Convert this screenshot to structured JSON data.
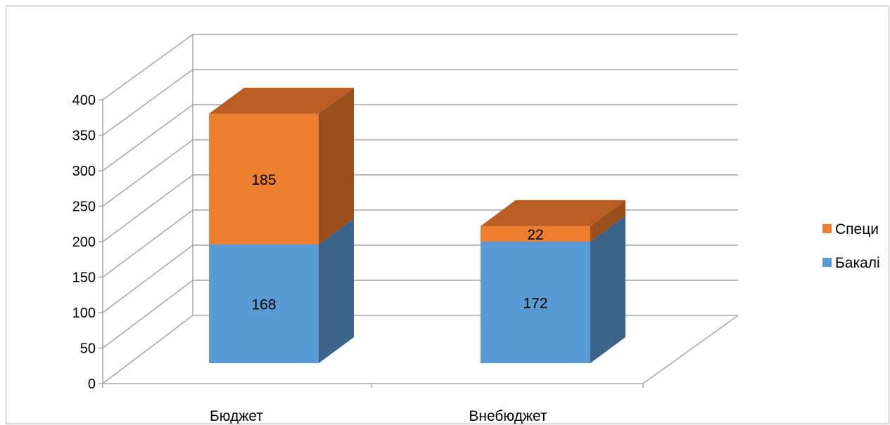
{
  "chart_data": {
    "type": "bar",
    "subtype": "stacked-3d",
    "categories": [
      "Бюджет",
      "Внебюджет"
    ],
    "series": [
      {
        "name": "Бакалі",
        "values": [
          168,
          172
        ],
        "color": "#5b9bd5",
        "side_color": "#3c6488"
      },
      {
        "name": "Специ",
        "values": [
          185,
          22
        ],
        "color": "#ed7d31",
        "side_color": "#9a4f1d",
        "top_color": "#b95d24"
      }
    ],
    "y_ticks": [
      "0",
      "50",
      "100",
      "150",
      "200",
      "250",
      "300",
      "350",
      "400"
    ],
    "ylim": [
      0,
      400
    ],
    "title": "",
    "xlabel": "",
    "ylabel": "",
    "legend_position": "right",
    "grid": true,
    "colors": {
      "grid": "#a6a6a6",
      "border": "#a6a6a6"
    }
  }
}
